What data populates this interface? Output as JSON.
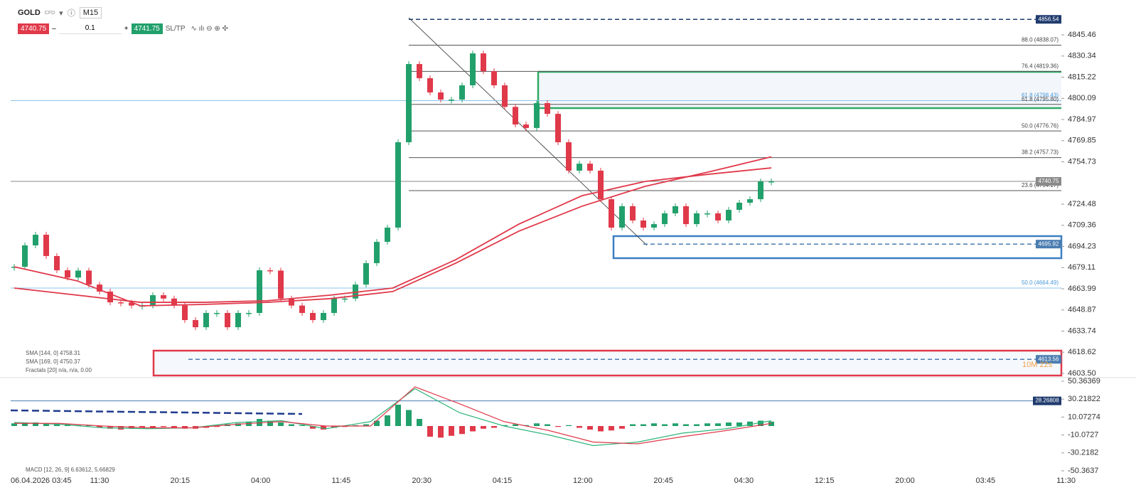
{
  "toolbar": {
    "symbol": "GOLD",
    "instrument_type": "CFD",
    "timeframe": "M15",
    "sell_price": "4740.75",
    "volume": "0.1",
    "buy_price": "4741.75",
    "sl_tp": "SL/TP"
  },
  "chart_data": [
    {
      "type": "candlestick",
      "up_color": "#22a06b",
      "down_color": "#e0394a",
      "closes": [
        4679.7,
        4695,
        4702.6,
        4687.4,
        4677.2,
        4672,
        4677,
        4667,
        4662,
        4654.3,
        4654,
        4652,
        4652,
        4659.4,
        4657,
        4652,
        4641.6,
        4636.5,
        4646.7,
        4646.7,
        4636.5,
        4646.7,
        4646.7,
        4677.2,
        4677,
        4657,
        4652,
        4646.7,
        4641.6,
        4646.7,
        4657,
        4657,
        4667,
        4682.3,
        4697.5,
        4707.7,
        4768.7,
        4824.6,
        4814.5,
        4804.3,
        4799.2,
        4799.2,
        4809.4,
        4832.2,
        4819.5,
        4809.4,
        4794,
        4781.4,
        4778.9,
        4796.7,
        4789,
        4768.7,
        4748.4,
        4753.4,
        4748.4,
        4728,
        4707.7,
        4723,
        4712.8,
        4707.7,
        4710.2,
        4717.9,
        4723,
        4710.2,
        4717.9,
        4717.9,
        4712.8,
        4720.4,
        4725.5,
        4728,
        4740.7,
        4740.75
      ],
      "series": [
        {
          "name": "SMA [144, 0] 4758.31",
          "color": "#e0394a",
          "values": [
            4679.7,
            4669.6,
            4651.8,
            4652.8,
            4654.3,
            4656.9,
            4662,
            4682.3,
            4705.2,
            4723,
            4737.2,
            4747.4,
            4758.31
          ]
        },
        {
          "name": "SMA [169, 0] 4750.37",
          "color": "#e0394a",
          "values": [
            4664.5,
            4659.4,
            4654.3,
            4654.3,
            4655.4,
            4659.4,
            4664.5,
            4684.8,
            4710.2,
            4730.5,
            4740.7,
            4745.8,
            4750.37
          ]
        }
      ],
      "extra_legend": "Fractals [20] n/a, n/a, 0.00",
      "ylim": [
        4600.96,
        4870.37
      ],
      "yticks": [
        4845.46,
        4830.34,
        4815.22,
        4800.09,
        4784.97,
        4769.85,
        4754.73,
        4724.48,
        4709.36,
        4694.23,
        4679.11,
        4663.99,
        4648.87,
        4633.74,
        4618.62,
        {
          "value": 4603.5,
          "label": "4603.50"
        }
      ],
      "time_labels": [
        "06.04.2026 03:45",
        "11:30",
        "20:15",
        "04:00",
        "11:45",
        "20:30",
        "04:15",
        "12:00",
        "20:45",
        "04:30",
        "12:15",
        "20:00",
        "03:45",
        "11:30"
      ],
      "fib_levels": [
        {
          "label": "88.0 (4838.07)",
          "price": 4838.07,
          "color": "#555555"
        },
        {
          "label": "76.4 (4819.36)",
          "price": 4819.36,
          "color": "#555555"
        },
        {
          "label": "61.8 (4798.43)",
          "price": 4798.43,
          "color": "#8cc4ec"
        },
        {
          "label": "61.8 (4795.80)",
          "price": 4795.8,
          "color": "#555555"
        },
        {
          "label": "50.0 (4776.76)",
          "price": 4776.76,
          "color": "#555555"
        },
        {
          "label": "38.2 (4757.73)",
          "price": 4757.73,
          "color": "#555555"
        },
        {
          "label": "23.6 (4734.17)",
          "price": 4734.17,
          "color": "#555555"
        },
        {
          "label": "50.0 (4664.49)",
          "price": 4664.49,
          "color": "#8cc4ec"
        }
      ],
      "price_tags": [
        {
          "value": 4856.54,
          "color": "#1f3b6e"
        },
        {
          "value": 4740.75,
          "color": "#8a8a8a"
        },
        {
          "value": 4695.92,
          "color": "#4a7cb0"
        },
        {
          "value": 4613.56,
          "color": "#4a7cb0"
        }
      ],
      "countdown": "10M 22s"
    },
    {
      "type": "macd",
      "name": "MACD [12, 26, 9] 6.63612, 5.66829",
      "histogram": [
        3,
        4,
        4,
        3,
        2,
        2,
        1,
        1,
        -2,
        -3,
        -4,
        -3,
        -2,
        -2,
        -1,
        -2,
        -3,
        -3,
        -2,
        -1,
        2,
        3,
        5,
        8,
        6,
        4,
        2,
        1,
        -3,
        -4,
        -2,
        -1,
        1,
        2,
        6,
        12,
        24,
        18,
        8,
        -12,
        -13,
        -11,
        -9,
        -6,
        -3,
        -2,
        1,
        2,
        1,
        3,
        2,
        -1,
        1,
        -2,
        -4,
        -6,
        -5,
        -3,
        2,
        2,
        3,
        2,
        3,
        2,
        2,
        3,
        3,
        4,
        4,
        5,
        6,
        5
      ],
      "macd_line": [
        4,
        2,
        -2,
        -3,
        -2,
        4,
        6,
        -3,
        5,
        42,
        15,
        0,
        -10,
        -22,
        -18,
        -8,
        -3,
        6
      ],
      "signal_line": [
        3,
        3,
        0,
        -2,
        -2,
        2,
        5,
        0,
        0,
        44,
        25,
        5,
        -5,
        -18,
        -20,
        -12,
        -5,
        3
      ],
      "macd_color": "#2fb57a",
      "signal_color": "#e0394a",
      "up_color": "#22a06b",
      "down_color": "#e0394a",
      "ylim": [
        -55.16,
        53.56
      ],
      "yticks": [
        50.36369,
        30.21822,
        10.07274,
        -10.0727,
        -30.2182,
        -50.3637
      ],
      "level_tag": 28.26808
    }
  ]
}
